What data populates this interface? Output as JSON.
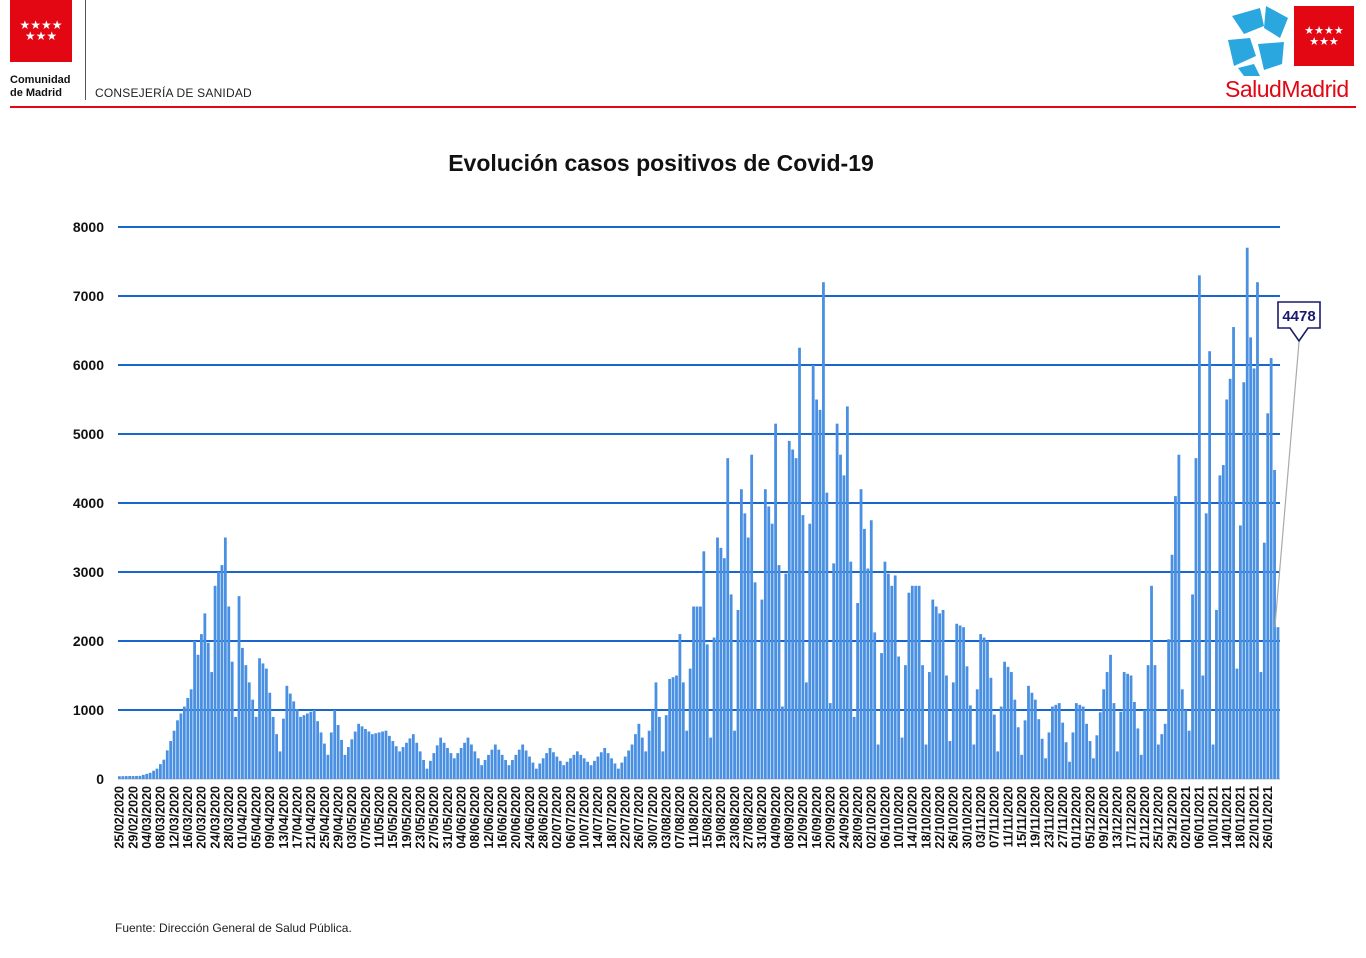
{
  "header": {
    "org_line1": "Comunidad",
    "org_line2": "de Madrid",
    "department": "CONSEJERÍA DE SANIDAD",
    "brand": "SaludMadrid",
    "flag_stars": "★★★★\n★★★",
    "colors": {
      "brand_red": "#e30613",
      "star_blue": "#2aa7df"
    }
  },
  "footer": {
    "source": "Fuente: Dirección General de Salud Pública."
  },
  "chart_data": {
    "type": "bar",
    "title": "Evolución casos positivos de Covid-19",
    "xlabel": "",
    "ylabel": "",
    "ylim": [
      0,
      8000
    ],
    "yticks": [
      0,
      1000,
      2000,
      3000,
      4000,
      5000,
      6000,
      7000,
      8000
    ],
    "grid": true,
    "legend": "none",
    "bar_color": "#4a90e2",
    "grid_color": "#1a66cc",
    "x_start": "25/02/2020",
    "x_tick_labels": [
      "25/02/2020",
      "29/02/2020",
      "04/03/2020",
      "08/03/2020",
      "12/03/2020",
      "16/03/2020",
      "20/03/2020",
      "24/03/2020",
      "28/03/2020",
      "01/04/2020",
      "05/04/2020",
      "09/04/2020",
      "13/04/2020",
      "17/04/2020",
      "21/04/2020",
      "25/04/2020",
      "29/04/2020",
      "03/05/2020",
      "07/05/2020",
      "11/05/2020",
      "15/05/2020",
      "19/05/2020",
      "23/05/2020",
      "27/05/2020",
      "31/05/2020",
      "04/06/2020",
      "08/06/2020",
      "12/06/2020",
      "16/06/2020",
      "20/06/2020",
      "24/06/2020",
      "28/06/2020",
      "02/07/2020",
      "06/07/2020",
      "10/07/2020",
      "14/07/2020",
      "18/07/2020",
      "22/07/2020",
      "26/07/2020",
      "30/07/2020",
      "03/08/2020",
      "07/08/2020",
      "11/08/2020",
      "15/08/2020",
      "19/08/2020",
      "23/08/2020",
      "27/08/2020",
      "31/08/2020",
      "04/09/2020",
      "08/09/2020",
      "12/09/2020",
      "16/09/2020",
      "20/09/2020",
      "24/09/2020",
      "28/09/2020",
      "02/10/2020",
      "06/10/2020",
      "10/10/2020",
      "14/10/2020",
      "18/10/2020",
      "22/10/2020",
      "26/10/2020",
      "30/10/2020",
      "03/11/2020",
      "07/11/2020",
      "11/11/2020",
      "15/11/2020",
      "19/11/2020",
      "23/11/2020",
      "27/11/2020",
      "01/12/2020",
      "05/12/2020",
      "09/12/2020",
      "13/12/2020",
      "17/12/2020",
      "21/12/2020",
      "25/12/2020",
      "29/12/2020",
      "02/01/2021",
      "06/01/2021",
      "10/01/2021",
      "14/01/2021",
      "18/01/2021",
      "22/01/2021",
      "26/01/2021"
    ],
    "anchors": [
      [
        "25/02/2020",
        40
      ],
      [
        "02/03/2020",
        45
      ],
      [
        "05/03/2020",
        90
      ],
      [
        "07/03/2020",
        150
      ],
      [
        "09/03/2020",
        280
      ],
      [
        "11/03/2020",
        550
      ],
      [
        "13/03/2020",
        850
      ],
      [
        "15/03/2020",
        1050
      ],
      [
        "17/03/2020",
        1300
      ],
      [
        "18/03/2020",
        2000
      ],
      [
        "19/03/2020",
        1800
      ],
      [
        "20/03/2020",
        2100
      ],
      [
        "21/03/2020",
        2400
      ],
      [
        "23/03/2020",
        1550
      ],
      [
        "24/03/2020",
        2800
      ],
      [
        "25/03/2020",
        3000
      ],
      [
        "26/03/2020",
        3100
      ],
      [
        "27/03/2020",
        3500
      ],
      [
        "28/03/2020",
        2500
      ],
      [
        "30/03/2020",
        900
      ],
      [
        "31/03/2020",
        2650
      ],
      [
        "01/04/2020",
        1900
      ],
      [
        "05/04/2020",
        900
      ],
      [
        "06/04/2020",
        1750
      ],
      [
        "08/04/2020",
        1600
      ],
      [
        "10/04/2020",
        900
      ],
      [
        "12/04/2020",
        400
      ],
      [
        "14/04/2020",
        1350
      ],
      [
        "18/04/2020",
        900
      ],
      [
        "22/04/2020",
        1000
      ],
      [
        "26/04/2020",
        350
      ],
      [
        "28/04/2020",
        1000
      ],
      [
        "01/05/2020",
        350
      ],
      [
        "05/05/2020",
        800
      ],
      [
        "09/05/2020",
        650
      ],
      [
        "13/05/2020",
        700
      ],
      [
        "17/05/2020",
        400
      ],
      [
        "21/05/2020",
        650
      ],
      [
        "25/05/2020",
        150
      ],
      [
        "29/05/2020",
        600
      ],
      [
        "02/06/2020",
        300
      ],
      [
        "06/06/2020",
        600
      ],
      [
        "10/06/2020",
        200
      ],
      [
        "14/06/2020",
        500
      ],
      [
        "18/06/2020",
        200
      ],
      [
        "22/06/2020",
        500
      ],
      [
        "26/06/2020",
        150
      ],
      [
        "30/06/2020",
        450
      ],
      [
        "04/07/2020",
        200
      ],
      [
        "08/07/2020",
        400
      ],
      [
        "12/07/2020",
        200
      ],
      [
        "16/07/2020",
        450
      ],
      [
        "20/07/2020",
        150
      ],
      [
        "24/07/2020",
        500
      ],
      [
        "26/07/2020",
        800
      ],
      [
        "28/07/2020",
        400
      ],
      [
        "30/07/2020",
        1000
      ],
      [
        "31/07/2020",
        1400
      ],
      [
        "02/08/2020",
        400
      ],
      [
        "04/08/2020",
        1450
      ],
      [
        "06/08/2020",
        1500
      ],
      [
        "07/08/2020",
        2100
      ],
      [
        "09/08/2020",
        700
      ],
      [
        "11/08/2020",
        2500
      ],
      [
        "13/08/2020",
        2500
      ],
      [
        "14/08/2020",
        3300
      ],
      [
        "16/08/2020",
        600
      ],
      [
        "18/08/2020",
        3500
      ],
      [
        "20/08/2020",
        3200
      ],
      [
        "21/08/2020",
        4650
      ],
      [
        "23/08/2020",
        700
      ],
      [
        "25/08/2020",
        4200
      ],
      [
        "27/08/2020",
        3500
      ],
      [
        "28/08/2020",
        4700
      ],
      [
        "30/08/2020",
        1000
      ],
      [
        "01/09/2020",
        4200
      ],
      [
        "03/09/2020",
        3700
      ],
      [
        "04/09/2020",
        5150
      ],
      [
        "06/09/2020",
        1050
      ],
      [
        "08/09/2020",
        4900
      ],
      [
        "10/09/2020",
        4650
      ],
      [
        "11/09/2020",
        6250
      ],
      [
        "13/09/2020",
        1400
      ],
      [
        "15/09/2020",
        6000
      ],
      [
        "16/09/2020",
        5500
      ],
      [
        "17/09/2020",
        5350
      ],
      [
        "18/09/2020",
        7200
      ],
      [
        "20/09/2020",
        1100
      ],
      [
        "22/09/2020",
        5150
      ],
      [
        "23/09/2020",
        4700
      ],
      [
        "24/09/2020",
        4400
      ],
      [
        "25/09/2020",
        5400
      ],
      [
        "27/09/2020",
        900
      ],
      [
        "29/09/2020",
        4200
      ],
      [
        "01/10/2020",
        3050
      ],
      [
        "02/10/2020",
        3750
      ],
      [
        "04/10/2020",
        500
      ],
      [
        "06/10/2020",
        3150
      ],
      [
        "08/10/2020",
        2800
      ],
      [
        "09/10/2020",
        2950
      ],
      [
        "11/10/2020",
        600
      ],
      [
        "13/10/2020",
        2700
      ],
      [
        "14/10/2020",
        2800
      ],
      [
        "16/10/2020",
        2800
      ],
      [
        "18/10/2020",
        500
      ],
      [
        "20/10/2020",
        2600
      ],
      [
        "22/10/2020",
        2400
      ],
      [
        "23/10/2020",
        2450
      ],
      [
        "25/10/2020",
        550
      ],
      [
        "27/10/2020",
        2250
      ],
      [
        "29/10/2020",
        2200
      ],
      [
        "01/11/2020",
        500
      ],
      [
        "03/11/2020",
        2100
      ],
      [
        "05/11/2020",
        2000
      ],
      [
        "08/11/2020",
        400
      ],
      [
        "10/11/2020",
        1700
      ],
      [
        "12/11/2020",
        1550
      ],
      [
        "15/11/2020",
        350
      ],
      [
        "17/11/2020",
        1350
      ],
      [
        "19/11/2020",
        1150
      ],
      [
        "22/11/2020",
        300
      ],
      [
        "24/11/2020",
        1050
      ],
      [
        "26/11/2020",
        1100
      ],
      [
        "29/11/2020",
        250
      ],
      [
        "01/12/2020",
        1100
      ],
      [
        "03/12/2020",
        1050
      ],
      [
        "06/12/2020",
        300
      ],
      [
        "09/12/2020",
        1300
      ],
      [
        "11/12/2020",
        1800
      ],
      [
        "13/12/2020",
        400
      ],
      [
        "15/12/2020",
        1550
      ],
      [
        "17/12/2020",
        1500
      ],
      [
        "20/12/2020",
        350
      ],
      [
        "22/12/2020",
        1650
      ],
      [
        "23/12/2020",
        2800
      ],
      [
        "25/12/2020",
        500
      ],
      [
        "27/12/2020",
        800
      ],
      [
        "29/12/2020",
        3250
      ],
      [
        "30/12/2020",
        4100
      ],
      [
        "31/12/2020",
        4700
      ],
      [
        "01/01/2021",
        1300
      ],
      [
        "03/01/2021",
        700
      ],
      [
        "05/01/2021",
        4650
      ],
      [
        "06/01/2021",
        7300
      ],
      [
        "07/01/2021",
        1500
      ],
      [
        "09/01/2021",
        6200
      ],
      [
        "10/01/2021",
        500
      ],
      [
        "12/01/2021",
        4400
      ],
      [
        "13/01/2021",
        4550
      ],
      [
        "14/01/2021",
        5500
      ],
      [
        "15/01/2021",
        5800
      ],
      [
        "16/01/2021",
        6550
      ],
      [
        "17/01/2021",
        1600
      ],
      [
        "19/01/2021",
        5750
      ],
      [
        "20/01/2021",
        7700
      ],
      [
        "21/01/2021",
        6400
      ],
      [
        "22/01/2021",
        5950
      ],
      [
        "23/01/2021",
        7200
      ],
      [
        "24/01/2021",
        1550
      ],
      [
        "26/01/2021",
        5300
      ],
      [
        "27/01/2021",
        6100
      ],
      [
        "28/01/2021",
        4478
      ],
      [
        "29/01/2021",
        2200
      ]
    ],
    "annotation": {
      "label": "4478",
      "points_to": "28/01/2021"
    }
  }
}
